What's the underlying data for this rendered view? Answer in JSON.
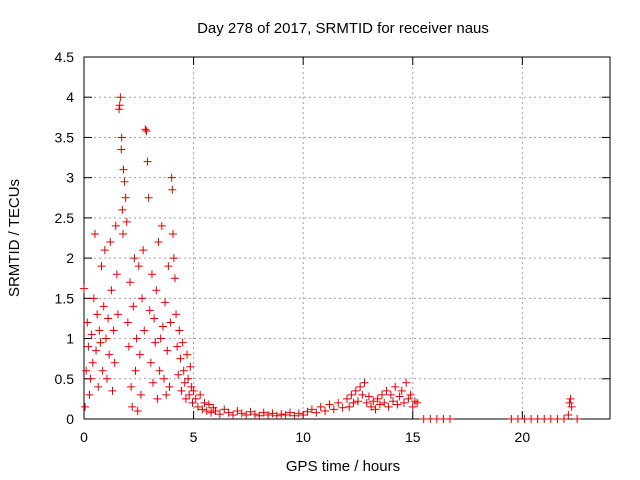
{
  "chart_data": {
    "type": "scatter",
    "title": "Day 278 of 2017, SRMTID for receiver naus",
    "xlabel": "GPS time / hours",
    "ylabel": "SRMTID / TECUs",
    "xlim": [
      0,
      24
    ],
    "ylim": [
      0,
      4.5
    ],
    "grid": true,
    "marker": "+",
    "marker_color": "#e00000",
    "x_ticks": [
      0,
      5,
      10,
      15,
      20
    ],
    "y_ticks": [
      0,
      0.5,
      1,
      1.5,
      2,
      2.5,
      3,
      3.5,
      4,
      4.5
    ],
    "x_tick_labels": [
      "0",
      "5",
      "10",
      "15",
      "20"
    ],
    "y_tick_labels": [
      "0",
      "0.5",
      "1",
      "1.5",
      "2",
      "2.5",
      "3",
      "3.5",
      "4",
      "4.5"
    ],
    "series": [
      {
        "name": "SRMTID",
        "points": [
          [
            0.0,
            1.62
          ],
          [
            0.05,
            0.15
          ],
          [
            0.1,
            0.6
          ],
          [
            0.15,
            1.2
          ],
          [
            0.2,
            0.9
          ],
          [
            0.25,
            0.3
          ],
          [
            0.3,
            0.5
          ],
          [
            0.35,
            1.05
          ],
          [
            0.4,
            0.7
          ],
          [
            0.45,
            1.5
          ],
          [
            0.5,
            2.3
          ],
          [
            0.55,
            0.85
          ],
          [
            0.6,
            1.3
          ],
          [
            0.65,
            0.4
          ],
          [
            0.7,
            1.1
          ],
          [
            0.75,
            0.95
          ],
          [
            0.8,
            1.9
          ],
          [
            0.85,
            0.6
          ],
          [
            0.9,
            1.4
          ],
          [
            0.95,
            2.1
          ],
          [
            1.0,
            1.0
          ],
          [
            1.05,
            0.5
          ],
          [
            1.1,
            1.25
          ],
          [
            1.15,
            0.8
          ],
          [
            1.2,
            2.2
          ],
          [
            1.25,
            1.6
          ],
          [
            1.3,
            0.35
          ],
          [
            1.35,
            1.1
          ],
          [
            1.4,
            0.7
          ],
          [
            1.45,
            2.4
          ],
          [
            1.5,
            1.8
          ],
          [
            1.55,
            1.3
          ],
          [
            1.6,
            3.85
          ],
          [
            1.63,
            3.9
          ],
          [
            1.66,
            4.0
          ],
          [
            1.7,
            3.35
          ],
          [
            1.72,
            3.5
          ],
          [
            1.75,
            2.6
          ],
          [
            1.78,
            2.3
          ],
          [
            1.8,
            3.1
          ],
          [
            1.85,
            2.95
          ],
          [
            1.9,
            2.75
          ],
          [
            1.95,
            2.45
          ],
          [
            2.0,
            1.2
          ],
          [
            2.05,
            0.9
          ],
          [
            2.1,
            1.7
          ],
          [
            2.15,
            0.4
          ],
          [
            2.2,
            0.15
          ],
          [
            2.25,
            1.4
          ],
          [
            2.3,
            2.0
          ],
          [
            2.35,
            0.6
          ],
          [
            2.4,
            1.0
          ],
          [
            2.45,
            0.1
          ],
          [
            2.5,
            1.9
          ],
          [
            2.55,
            0.8
          ],
          [
            2.6,
            0.3
          ],
          [
            2.65,
            1.5
          ],
          [
            2.7,
            2.1
          ],
          [
            2.75,
            1.1
          ],
          [
            2.8,
            3.6
          ],
          [
            2.85,
            3.58
          ],
          [
            2.9,
            3.2
          ],
          [
            2.95,
            2.75
          ],
          [
            3.0,
            1.35
          ],
          [
            3.05,
            0.7
          ],
          [
            3.1,
            1.8
          ],
          [
            3.15,
            0.45
          ],
          [
            3.2,
            1.25
          ],
          [
            3.25,
            0.95
          ],
          [
            3.3,
            1.6
          ],
          [
            3.35,
            0.25
          ],
          [
            3.4,
            2.2
          ],
          [
            3.45,
            0.6
          ],
          [
            3.5,
            1.0
          ],
          [
            3.55,
            2.4
          ],
          [
            3.6,
            1.15
          ],
          [
            3.65,
            0.5
          ],
          [
            3.7,
            1.45
          ],
          [
            3.75,
            0.3
          ],
          [
            3.8,
            0.85
          ],
          [
            3.85,
            1.9
          ],
          [
            3.9,
            0.4
          ],
          [
            3.95,
            1.2
          ],
          [
            4.0,
            3.0
          ],
          [
            4.03,
            2.85
          ],
          [
            4.06,
            2.3
          ],
          [
            4.1,
            2.0
          ],
          [
            4.15,
            1.75
          ],
          [
            4.2,
            1.3
          ],
          [
            4.25,
            0.9
          ],
          [
            4.3,
            0.55
          ],
          [
            4.35,
            1.1
          ],
          [
            4.4,
            0.75
          ],
          [
            4.45,
            0.35
          ],
          [
            4.5,
            0.95
          ],
          [
            4.55,
            0.6
          ],
          [
            4.6,
            0.45
          ],
          [
            4.65,
            0.25
          ],
          [
            4.7,
            0.8
          ],
          [
            4.75,
            0.5
          ],
          [
            4.8,
            0.3
          ],
          [
            4.85,
            0.65
          ],
          [
            4.9,
            0.4
          ],
          [
            4.95,
            0.2
          ],
          [
            5.0,
            0.35
          ],
          [
            5.1,
            0.25
          ],
          [
            5.2,
            0.15
          ],
          [
            5.3,
            0.3
          ],
          [
            5.4,
            0.12
          ],
          [
            5.5,
            0.2
          ],
          [
            5.6,
            0.1
          ],
          [
            5.7,
            0.18
          ],
          [
            5.8,
            0.08
          ],
          [
            5.9,
            0.14
          ],
          [
            6.0,
            0.1
          ],
          [
            6.2,
            0.06
          ],
          [
            6.4,
            0.12
          ],
          [
            6.6,
            0.08
          ],
          [
            6.8,
            0.05
          ],
          [
            7.0,
            0.1
          ],
          [
            7.2,
            0.07
          ],
          [
            7.4,
            0.05
          ],
          [
            7.6,
            0.09
          ],
          [
            7.8,
            0.06
          ],
          [
            8.0,
            0.04
          ],
          [
            8.2,
            0.08
          ],
          [
            8.4,
            0.05
          ],
          [
            8.6,
            0.07
          ],
          [
            8.8,
            0.04
          ],
          [
            9.0,
            0.06
          ],
          [
            9.2,
            0.05
          ],
          [
            9.4,
            0.08
          ],
          [
            9.6,
            0.04
          ],
          [
            9.8,
            0.07
          ],
          [
            10.0,
            0.05
          ],
          [
            10.2,
            0.09
          ],
          [
            10.4,
            0.12
          ],
          [
            10.6,
            0.08
          ],
          [
            10.8,
            0.15
          ],
          [
            11.0,
            0.1
          ],
          [
            11.2,
            0.18
          ],
          [
            11.4,
            0.12
          ],
          [
            11.6,
            0.2
          ],
          [
            11.8,
            0.14
          ],
          [
            12.0,
            0.25
          ],
          [
            12.1,
            0.15
          ],
          [
            12.2,
            0.3
          ],
          [
            12.3,
            0.2
          ],
          [
            12.4,
            0.35
          ],
          [
            12.5,
            0.22
          ],
          [
            12.6,
            0.4
          ],
          [
            12.7,
            0.3
          ],
          [
            12.8,
            0.45
          ],
          [
            12.9,
            0.2
          ],
          [
            13.0,
            0.28
          ],
          [
            13.1,
            0.15
          ],
          [
            13.2,
            0.22
          ],
          [
            13.3,
            0.12
          ],
          [
            13.4,
            0.25
          ],
          [
            13.5,
            0.18
          ],
          [
            13.6,
            0.3
          ],
          [
            13.7,
            0.2
          ],
          [
            13.8,
            0.35
          ],
          [
            13.9,
            0.15
          ],
          [
            14.0,
            0.3
          ],
          [
            14.1,
            0.22
          ],
          [
            14.2,
            0.4
          ],
          [
            14.3,
            0.18
          ],
          [
            14.4,
            0.28
          ],
          [
            14.5,
            0.35
          ],
          [
            14.6,
            0.2
          ],
          [
            14.7,
            0.45
          ],
          [
            14.8,
            0.25
          ],
          [
            14.9,
            0.3
          ],
          [
            15.0,
            0.15
          ],
          [
            15.1,
            0.22
          ],
          [
            15.2,
            0.2
          ],
          [
            15.5,
            0.0
          ],
          [
            15.8,
            0.0
          ],
          [
            16.1,
            0.0
          ],
          [
            16.4,
            0.0
          ],
          [
            16.7,
            0.0
          ],
          [
            19.5,
            0.0
          ],
          [
            19.8,
            0.0
          ],
          [
            20.1,
            0.0
          ],
          [
            20.4,
            0.0
          ],
          [
            20.7,
            0.0
          ],
          [
            21.0,
            0.0
          ],
          [
            21.3,
            0.0
          ],
          [
            21.6,
            0.0
          ],
          [
            21.9,
            0.0
          ],
          [
            22.1,
            0.05
          ],
          [
            22.15,
            0.2
          ],
          [
            22.2,
            0.25
          ],
          [
            22.25,
            0.15
          ],
          [
            22.5,
            0.0
          ]
        ]
      }
    ]
  }
}
